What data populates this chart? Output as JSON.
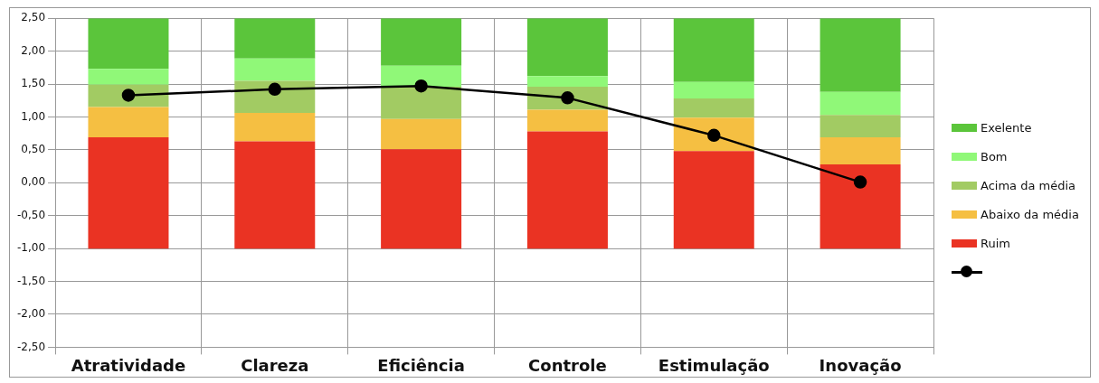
{
  "chart_data": {
    "type": "bar",
    "categories": [
      "Atratividade",
      "Clareza",
      "Eficiência",
      "Controle",
      "Estimulação",
      "Inovação"
    ],
    "series": [
      {
        "name": "Ruim",
        "color": "#ea3323",
        "base": [
          -1,
          -1,
          -1,
          -1,
          -1,
          -1
        ],
        "values": [
          1.69,
          1.63,
          1.51,
          1.78,
          1.48,
          1.28
        ]
      },
      {
        "name": "Abaixo da média",
        "color": "#f5bf42",
        "base": [
          0.69,
          0.63,
          0.51,
          0.78,
          0.48,
          0.28
        ],
        "values": [
          0.46,
          0.43,
          0.46,
          0.33,
          0.51,
          0.41
        ]
      },
      {
        "name": "Acima da média",
        "color": "#a2cb63",
        "base": [
          1.15,
          1.06,
          0.97,
          1.11,
          0.99,
          0.69
        ],
        "values": [
          0.34,
          0.49,
          0.49,
          0.35,
          0.29,
          0.34
        ]
      },
      {
        "name": "Bom",
        "color": "#90f878",
        "base": [
          1.49,
          1.55,
          1.46,
          1.46,
          1.28,
          1.03
        ],
        "values": [
          0.24,
          0.34,
          0.32,
          0.16,
          0.25,
          0.35
        ]
      },
      {
        "name": "Exelente",
        "color": "#5bc53b",
        "base": [
          1.73,
          1.89,
          1.78,
          1.62,
          1.53,
          1.38
        ],
        "values": [
          0.77,
          0.61,
          0.72,
          0.88,
          0.97,
          1.12
        ]
      },
      {
        "type": "line",
        "color": "#000000",
        "marker": "circle",
        "values": [
          1.33,
          1.42,
          1.47,
          1.29,
          0.72,
          0.01
        ]
      }
    ],
    "ylim": [
      -2.5,
      2.5
    ],
    "yticks": [
      {
        "value": -2.5,
        "label": "-2,50"
      },
      {
        "value": -2,
        "label": "-2,00"
      },
      {
        "value": -1.5,
        "label": "-1,50"
      },
      {
        "value": -1,
        "label": "-1,00"
      },
      {
        "value": -0.5,
        "label": "-0,50"
      },
      {
        "value": 0,
        "label": "0,00"
      },
      {
        "value": 0.5,
        "label": "0,50"
      },
      {
        "value": 1,
        "label": "1,00"
      },
      {
        "value": 1.5,
        "label": "1,50"
      },
      {
        "value": 2,
        "label": "2,00"
      },
      {
        "value": 2.5,
        "label": "2,50"
      }
    ],
    "grid": true,
    "legend": "right"
  }
}
